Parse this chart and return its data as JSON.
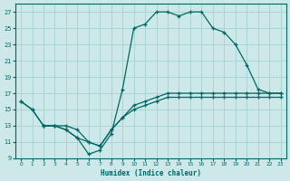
{
  "xlabel": "Humidex (Indice chaleur)",
  "bg_color": "#cce8e8",
  "grid_color": "#aad4d4",
  "line_color": "#006666",
  "xlim": [
    -0.5,
    23.5
  ],
  "ylim": [
    9,
    28
  ],
  "xticks": [
    0,
    1,
    2,
    3,
    4,
    5,
    6,
    7,
    8,
    9,
    10,
    11,
    12,
    13,
    14,
    15,
    16,
    17,
    18,
    19,
    20,
    21,
    22,
    23
  ],
  "yticks": [
    9,
    11,
    13,
    15,
    17,
    19,
    21,
    23,
    25,
    27
  ],
  "line1_x": [
    0,
    1,
    2,
    3,
    4,
    5,
    6,
    7,
    8,
    9,
    10,
    11,
    12,
    13,
    14,
    15,
    16,
    17,
    18,
    19,
    20,
    21,
    22,
    23
  ],
  "line1_y": [
    16,
    15,
    13,
    13,
    12.5,
    11.5,
    9.5,
    10,
    12,
    17.5,
    25,
    25.5,
    27,
    27,
    26.5,
    27,
    27,
    25,
    24.5,
    23,
    20.5,
    17.5,
    17,
    17
  ],
  "line2_x": [
    0,
    1,
    2,
    3,
    4,
    5,
    6,
    7,
    8,
    9,
    10,
    11,
    12,
    13,
    14,
    15,
    16,
    17,
    18,
    19,
    20,
    21,
    22,
    23
  ],
  "line2_y": [
    16,
    15,
    13,
    13,
    13,
    12.5,
    11,
    10.5,
    12.5,
    14,
    15,
    15.5,
    16,
    16.5,
    16.5,
    16.5,
    16.5,
    16.5,
    16.5,
    16.5,
    16.5,
    16.5,
    16.5,
    16.5
  ],
  "line3_x": [
    2,
    3,
    4,
    5,
    6,
    7,
    8,
    9,
    10,
    11,
    12,
    13,
    14,
    15,
    16,
    17,
    18,
    19,
    20,
    21,
    22,
    23
  ],
  "line3_y": [
    13,
    13,
    12.5,
    11.5,
    11,
    10.5,
    12.5,
    14,
    15.5,
    16,
    16.5,
    17,
    17,
    17,
    17,
    17,
    17,
    17,
    17,
    17,
    17,
    17
  ]
}
